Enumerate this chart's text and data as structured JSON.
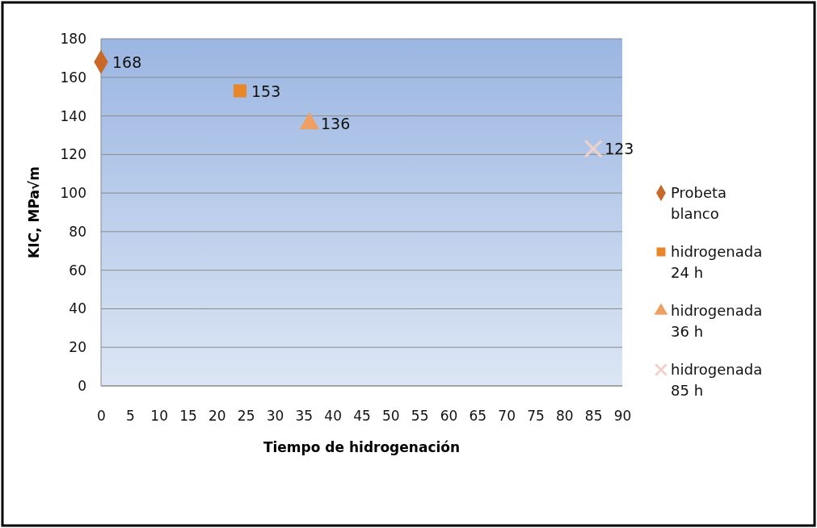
{
  "chart_data": {
    "type": "scatter",
    "xlabel": "Tiempo de hidrogenación",
    "ylabel": "KIC, MPa√m",
    "xlim": [
      0,
      90
    ],
    "xticks": [
      0,
      5,
      10,
      15,
      20,
      25,
      30,
      35,
      40,
      45,
      50,
      55,
      60,
      65,
      70,
      75,
      80,
      85,
      90
    ],
    "ylim": [
      0,
      180
    ],
    "yticks": [
      0,
      20,
      40,
      60,
      80,
      100,
      120,
      140,
      160,
      180
    ],
    "grid": "y",
    "legend": "right",
    "data_labels": true,
    "series": [
      {
        "name": "Probeta blanco",
        "color": "#c8692a",
        "marker": "diamond",
        "x": [
          0
        ],
        "values": [
          168
        ]
      },
      {
        "name": "hidrogenada 24 h",
        "color": "#e8862a",
        "marker": "square",
        "x": [
          24
        ],
        "values": [
          153
        ]
      },
      {
        "name": "hidrogenada 36 h",
        "color": "#eea064",
        "marker": "triangle",
        "x": [
          36
        ],
        "values": [
          136
        ]
      },
      {
        "name": "hidrogenada 85 h",
        "color": "#f2d2c8",
        "marker": "cross",
        "x": [
          85
        ],
        "values": [
          123
        ]
      }
    ]
  }
}
